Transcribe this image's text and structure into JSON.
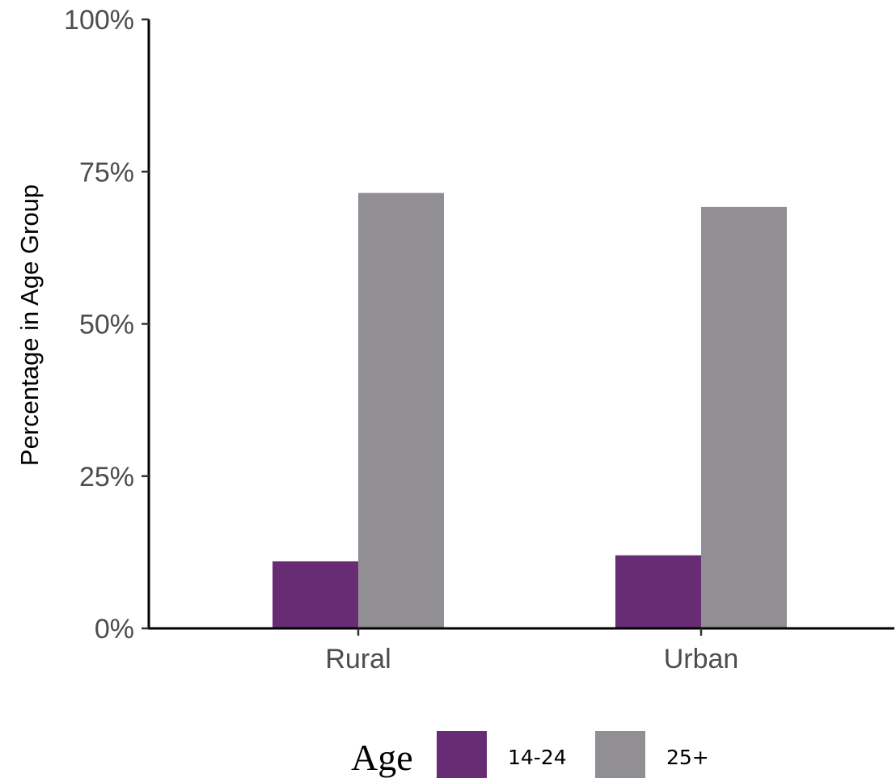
{
  "chart_data": {
    "type": "bar",
    "title": "",
    "xlabel": "",
    "ylabel": "Percentage in Age Group",
    "categories": [
      "Rural",
      "Urban"
    ],
    "series": [
      {
        "name": "14-24",
        "values": [
          0.11,
          0.12
        ],
        "color": "#682C74"
      },
      {
        "name": "25+",
        "values": [
          0.715,
          0.692
        ],
        "color": "#918E94"
      }
    ],
    "ylim": [
      0,
      1
    ],
    "yticks": [
      0,
      0.25,
      0.5,
      0.75,
      1
    ],
    "ytick_labels": [
      "0%",
      "25%",
      "50%",
      "75%",
      "100%"
    ],
    "grid": false,
    "legend": {
      "title": "Age",
      "position": "bottom"
    }
  }
}
